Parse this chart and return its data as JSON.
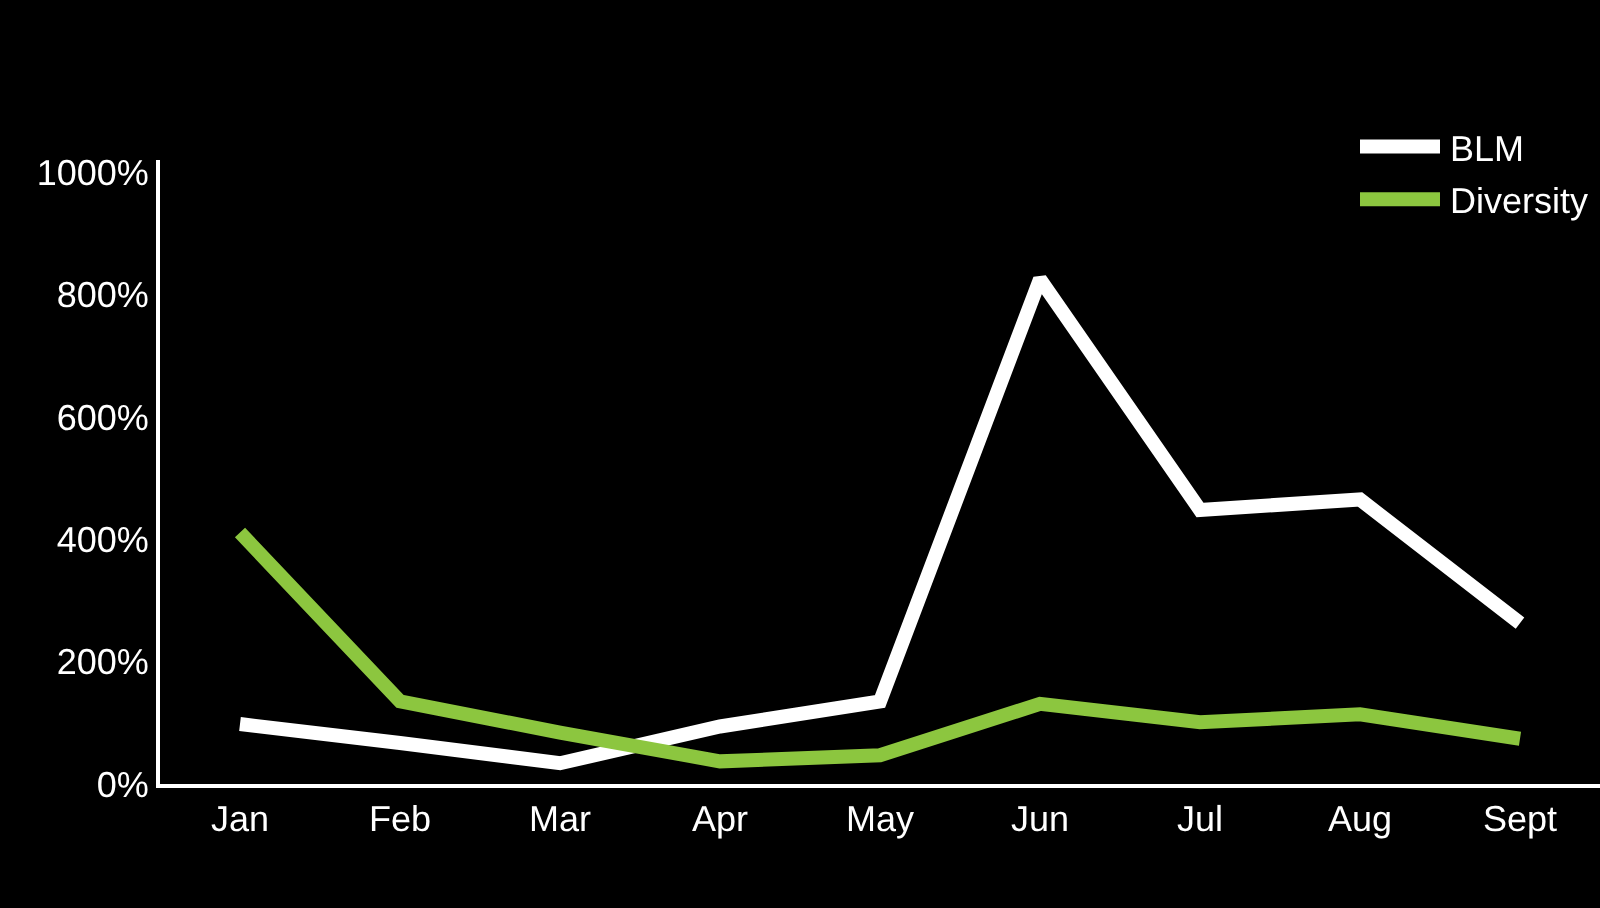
{
  "chart_data": {
    "type": "line",
    "categories": [
      "Jan",
      "Feb",
      "Mar",
      "Apr",
      "May",
      "Jun",
      "Jul",
      "Aug",
      "Sept"
    ],
    "series": [
      {
        "name": "BLM",
        "color": "#ffffff",
        "values": [
          98,
          67,
          34,
          94,
          135,
          825,
          448,
          465,
          263
        ]
      },
      {
        "name": "Diversity",
        "color": "#8cc63f",
        "values": [
          411,
          135,
          84,
          37,
          47,
          131,
          101,
          114,
          74
        ]
      }
    ],
    "ylim": [
      0,
      1020
    ],
    "yticks": [
      {
        "value": 0,
        "label": "0%"
      },
      {
        "value": 200,
        "label": "200%"
      },
      {
        "value": 400,
        "label": "400%"
      },
      {
        "value": 600,
        "label": "600%"
      },
      {
        "value": 800,
        "label": "800%"
      },
      {
        "value": 1000,
        "label": "1000%"
      }
    ],
    "grid": false,
    "legend": "top right",
    "marker": "none",
    "line_style": "solid"
  }
}
